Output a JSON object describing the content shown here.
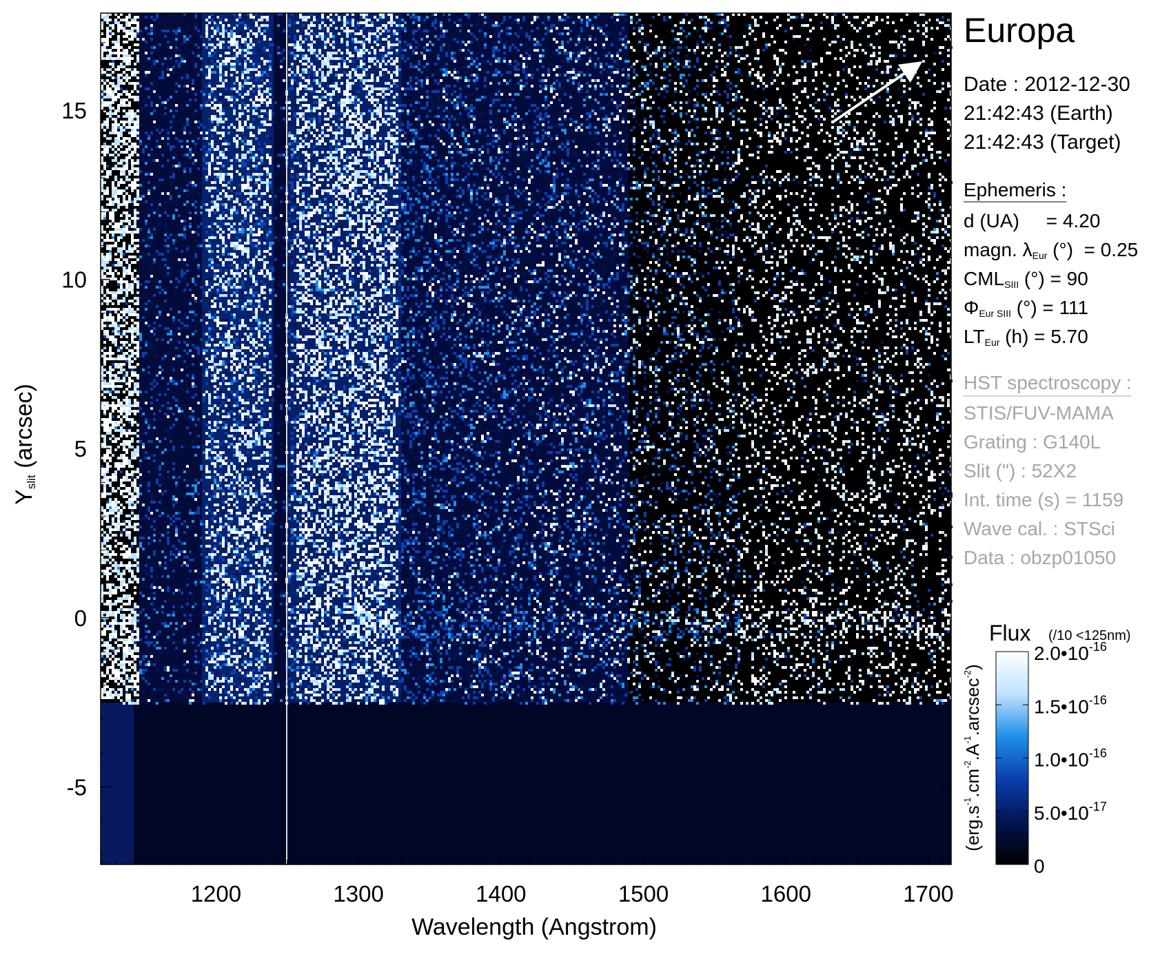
{
  "chart_data": {
    "type": "spectral-image",
    "title": "Europa",
    "xlabel": "Wavelength (Angstrom)",
    "ylabel": [
      "Y",
      "slit",
      " (arcsec)"
    ],
    "xlim": [
      1119,
      1716
    ],
    "ylim": [
      -7.29,
      17.87
    ],
    "xticks": [
      1200,
      1300,
      1400,
      1500,
      1600,
      1700
    ],
    "yticks": [
      -5,
      0,
      5,
      10,
      15
    ],
    "colorbar": {
      "title": "Flux",
      "note": "(/10 <125nm)",
      "label": [
        "(erg.s",
        "-1",
        ".cm",
        "-2",
        ".A",
        "-1",
        ".arcsec",
        "-2",
        ")"
      ],
      "clim": [
        0,
        2e-16
      ],
      "colors": [
        "#000000",
        "#031452",
        "#0a3fae",
        "#1f8fe8",
        "#bfe2ff",
        "#ffffff"
      ],
      "ticks": [
        0,
        {
          "value": 5e-17,
          "label": "5.0•10",
          "exponent": "-17"
        },
        {
          "value": 1e-16,
          "label": "1.0•10",
          "exponent": "-16"
        },
        {
          "value": 1.5e-16,
          "label": "1.5•10",
          "exponent": "-16"
        },
        {
          "value": 2e-16,
          "label": "2.0•10",
          "exponent": "-16"
        }
      ]
    },
    "info": {
      "date": [
        "Date : 2012-12-30",
        "21:42:43 (Earth)",
        "21:42:43 (Target)"
      ],
      "ephemeris": {
        "heading": "Ephemeris :",
        "lines": [
          [
            "d (UA)     = 4.20"
          ],
          [
            "magn. λ",
            "Eur",
            " (°)  = 0.25"
          ],
          [
            "CML",
            "SIII",
            " (°) = 90"
          ],
          [
            "Φ",
            "Eur SIII",
            " (°) = 111"
          ],
          [
            "LT",
            "Eur",
            " (h) = 5.70"
          ]
        ]
      },
      "observation": {
        "heading": "HST spectroscopy :",
        "lines": [
          "STIS/FUV-MAMA",
          "Grating : G140L",
          "Slit (\") : 52X2",
          "Int. time (s) = 1159",
          "Wave cal. : STSci",
          "Data : obzp01050"
        ]
      }
    }
  }
}
